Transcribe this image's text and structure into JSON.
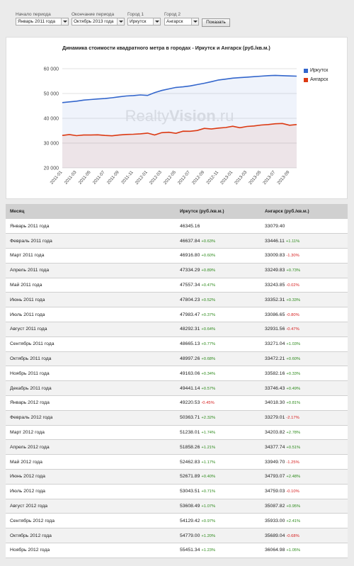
{
  "filters": {
    "start_label": "Начало периода",
    "start_value": "Январь 2011 года",
    "end_label": "Окончание периода",
    "end_value": "Октябрь 2013 года",
    "city1_label": "Город 1",
    "city1_value": "Иркутск",
    "city2_label": "Город 2",
    "city2_value": "Ангарск",
    "show_button": "Показать"
  },
  "watermark": {
    "part1": "Realty",
    "part2": "Vision",
    "part3": ".ru"
  },
  "colors": {
    "series1": "#3366cc",
    "series2": "#dc3912",
    "accent_green": "#2e8b1d",
    "accent_red": "#d62020"
  },
  "chart_data": {
    "type": "area",
    "title": "Динамика стоимости квадратного метра в городах - Иркутск и Ангарск (руб./кв.м.)",
    "ylim": [
      20000,
      60000
    ],
    "yticks": [
      "60 000",
      "50 000",
      "40 000",
      "30 000",
      "20 000"
    ],
    "ytick_values": [
      60000,
      50000,
      40000,
      30000,
      20000
    ],
    "xtick_labels": [
      "2011-01",
      "2011-03",
      "2011-05",
      "2011-07",
      "2011-09",
      "2011-11",
      "2012-01",
      "2012-03",
      "2012-05",
      "2012-07",
      "2012-09",
      "2012-11",
      "2013-01",
      "2013-03",
      "2013-05",
      "2013-07",
      "2013-09"
    ],
    "x": [
      "2011-01",
      "2011-02",
      "2011-03",
      "2011-04",
      "2011-05",
      "2011-06",
      "2011-07",
      "2011-08",
      "2011-09",
      "2011-10",
      "2011-11",
      "2011-12",
      "2012-01",
      "2012-02",
      "2012-03",
      "2012-04",
      "2012-05",
      "2012-06",
      "2012-07",
      "2012-08",
      "2012-09",
      "2012-10",
      "2012-11",
      "2012-12",
      "2013-01",
      "2013-02",
      "2013-03",
      "2013-04",
      "2013-05",
      "2013-06",
      "2013-07",
      "2013-08",
      "2013-09",
      "2013-10"
    ],
    "series": [
      {
        "name": "Иркутск",
        "values": [
          46345.16,
          46637.84,
          46916.8,
          47334.29,
          47557.34,
          47804.23,
          47983.47,
          48292.31,
          48665.13,
          48997.26,
          49163.06,
          49441.14,
          49220.53,
          50363.71,
          51238.01,
          51858.26,
          52462.83,
          52671.89,
          53043.51,
          53608.49,
          54129.42,
          54779.0,
          55451.34,
          55800,
          56200,
          56400,
          56600,
          56800,
          57000,
          57200,
          57300,
          57200,
          57100,
          57000
        ]
      },
      {
        "name": "Ангарск",
        "values": [
          33079.4,
          33446.11,
          33009.83,
          33249.83,
          33243.85,
          33352.31,
          33086.65,
          32931.56,
          33271.04,
          33472.21,
          33582.16,
          33746.43,
          34018.3,
          33279.01,
          34203.82,
          34377.74,
          33949.7,
          34793.07,
          34759.03,
          35087.82,
          35933.0,
          35689.04,
          36064.98,
          36300,
          36800,
          36200,
          36700,
          36900,
          37300,
          37500,
          37800,
          37900,
          37200,
          37500
        ]
      }
    ]
  },
  "table": {
    "headers": [
      "Месяц",
      "Иркутск (руб./кв.м.)",
      "Ангарск (руб./кв.м.)"
    ],
    "rows": [
      {
        "month": "Январь 2011 года",
        "v1": "46345.16",
        "c1": "",
        "v2": "33079.40",
        "c2": ""
      },
      {
        "month": "Февраль 2011 года",
        "v1": "46637.84",
        "c1": "+0.63%",
        "v2": "33446.11",
        "c2": "+1.11%"
      },
      {
        "month": "Март 2011 года",
        "v1": "46916.80",
        "c1": "+0.60%",
        "v2": "33009.83",
        "c2": "-1.30%"
      },
      {
        "month": "Апрель 2011 года",
        "v1": "47334.29",
        "c1": "+0.89%",
        "v2": "33249.83",
        "c2": "+0.73%"
      },
      {
        "month": "Май 2011 года",
        "v1": "47557.34",
        "c1": "+0.47%",
        "v2": "33243.85",
        "c2": "-0.02%"
      },
      {
        "month": "Июнь 2011 года",
        "v1": "47804.23",
        "c1": "+0.52%",
        "v2": "33352.31",
        "c2": "+0.33%"
      },
      {
        "month": "Июль 2011 года",
        "v1": "47983.47",
        "c1": "+0.37%",
        "v2": "33086.65",
        "c2": "-0.80%"
      },
      {
        "month": "Август 2011 года",
        "v1": "48292.31",
        "c1": "+0.64%",
        "v2": "32931.56",
        "c2": "-0.47%"
      },
      {
        "month": "Сентябрь 2011 года",
        "v1": "48665.13",
        "c1": "+0.77%",
        "v2": "33271.04",
        "c2": "+1.03%"
      },
      {
        "month": "Октябрь 2011 года",
        "v1": "48997.26",
        "c1": "+0.68%",
        "v2": "33472.21",
        "c2": "+0.60%"
      },
      {
        "month": "Ноябрь 2011 года",
        "v1": "49163.06",
        "c1": "+0.34%",
        "v2": "33582.16",
        "c2": "+0.33%"
      },
      {
        "month": "Декабрь 2011 года",
        "v1": "49441.14",
        "c1": "+0.57%",
        "v2": "33746.43",
        "c2": "+0.49%"
      },
      {
        "month": "Январь 2012 года",
        "v1": "49220.53",
        "c1": "-0.45%",
        "v2": "34018.30",
        "c2": "+0.81%"
      },
      {
        "month": "Февраль 2012 года",
        "v1": "50363.71",
        "c1": "+2.32%",
        "v2": "33279.01",
        "c2": "-2.17%"
      },
      {
        "month": "Март 2012 года",
        "v1": "51238.01",
        "c1": "+1.74%",
        "v2": "34203.82",
        "c2": "+2.78%"
      },
      {
        "month": "Апрель 2012 года",
        "v1": "51858.26",
        "c1": "+1.21%",
        "v2": "34377.74",
        "c2": "+0.51%"
      },
      {
        "month": "Май 2012 года",
        "v1": "52462.83",
        "c1": "+1.17%",
        "v2": "33949.70",
        "c2": "-1.25%"
      },
      {
        "month": "Июнь 2012 года",
        "v1": "52671.89",
        "c1": "+0.40%",
        "v2": "34793.07",
        "c2": "+2.48%"
      },
      {
        "month": "Июль 2012 года",
        "v1": "53043.51",
        "c1": "+0.71%",
        "v2": "34759.03",
        "c2": "-0.10%"
      },
      {
        "month": "Август 2012 года",
        "v1": "53608.49",
        "c1": "+1.07%",
        "v2": "35087.82",
        "c2": "+0.95%"
      },
      {
        "month": "Сентябрь 2012 года",
        "v1": "54129.42",
        "c1": "+0.97%",
        "v2": "35933.00",
        "c2": "+2.41%"
      },
      {
        "month": "Октябрь 2012 года",
        "v1": "54779.00",
        "c1": "+1.20%",
        "v2": "35689.04",
        "c2": "-0.68%"
      },
      {
        "month": "Ноябрь 2012 года",
        "v1": "55451.34",
        "c1": "+1.23%",
        "v2": "36064.98",
        "c2": "+1.05%"
      }
    ]
  }
}
